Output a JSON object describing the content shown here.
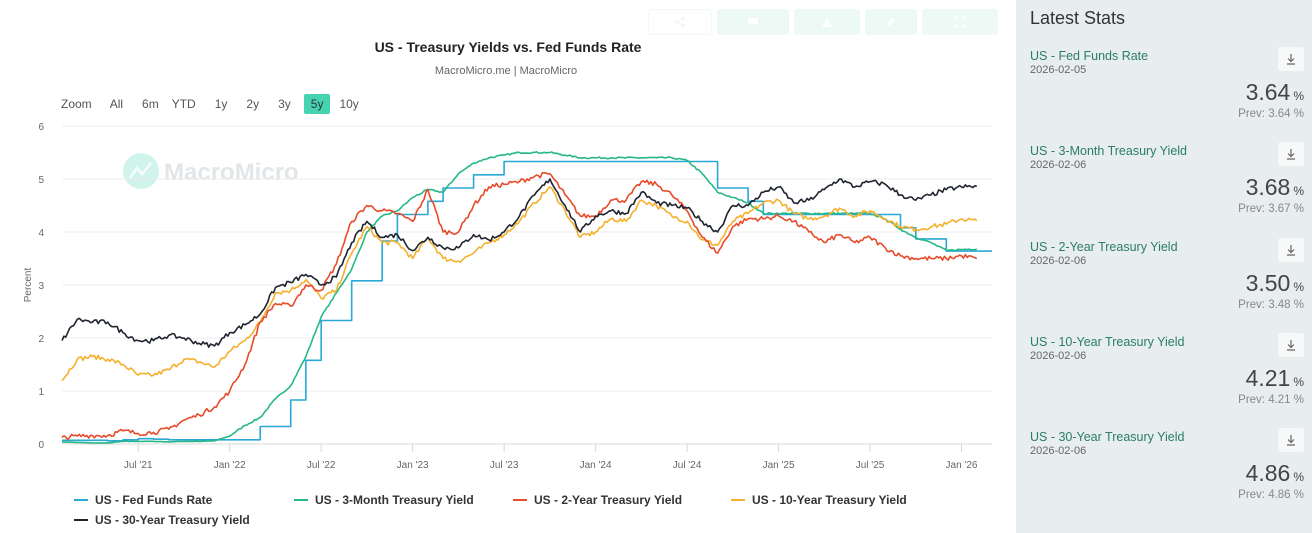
{
  "toolbar": {
    "buttons": [
      {
        "icon": "share-icon"
      },
      {
        "icon": "comment-icon"
      },
      {
        "icon": "image-icon"
      },
      {
        "icon": "edit-icon"
      },
      {
        "icon": "enlarge-icon"
      }
    ]
  },
  "zoom": {
    "label": "Zoom",
    "options": [
      "All",
      "6m",
      "YTD",
      "1y",
      "2y",
      "3y",
      "5y",
      "10y"
    ],
    "active": "5y"
  },
  "watermark": "MacroMicro",
  "colors": {
    "accent": "#45d3b1",
    "fed_funds": "#2aa8d6",
    "three_month": "#26b888",
    "two_year": "#e84b2b",
    "ten_year": "#f5b02e",
    "thirty_year": "#1f2430",
    "panel_bg": "#e8edef",
    "stat_name": "#2a7d66"
  },
  "chart_data": {
    "type": "line",
    "title": "US - Treasury Yields vs. Fed Funds Rate",
    "subtitle": "MacroMicro.me | MacroMicro",
    "xlabel": "",
    "ylabel": "Percent",
    "ylim": [
      0,
      6
    ],
    "yticks": [
      "0",
      "1",
      "2",
      "3",
      "4",
      "5",
      "6"
    ],
    "xticks": [
      "Jul '21",
      "Jan '22",
      "Jul '22",
      "Jan '23",
      "Jul '23",
      "Jan '24",
      "Jul '24",
      "Jan '25",
      "Jul '25",
      "Jan '26"
    ],
    "xtick_dates": [
      "2021-07",
      "2022-01",
      "2022-07",
      "2023-01",
      "2023-07",
      "2024-01",
      "2024-07",
      "2025-01",
      "2025-07",
      "2026-01"
    ],
    "xrange": [
      "2021-02",
      "2026-02"
    ],
    "grid": true,
    "legend_position": "bottom",
    "x": [
      "2021-02",
      "2021-03",
      "2021-04",
      "2021-05",
      "2021-06",
      "2021-07",
      "2021-08",
      "2021-09",
      "2021-10",
      "2021-11",
      "2021-12",
      "2022-01",
      "2022-02",
      "2022-03",
      "2022-04",
      "2022-05",
      "2022-06",
      "2022-07",
      "2022-08",
      "2022-09",
      "2022-10",
      "2022-11",
      "2022-12",
      "2023-01",
      "2023-02",
      "2023-03",
      "2023-04",
      "2023-05",
      "2023-06",
      "2023-07",
      "2023-08",
      "2023-09",
      "2023-10",
      "2023-11",
      "2023-12",
      "2024-01",
      "2024-02",
      "2024-03",
      "2024-04",
      "2024-05",
      "2024-06",
      "2024-07",
      "2024-08",
      "2024-09",
      "2024-10",
      "2024-11",
      "2024-12",
      "2025-01",
      "2025-02",
      "2025-03",
      "2025-04",
      "2025-05",
      "2025-06",
      "2025-07",
      "2025-08",
      "2025-09",
      "2025-10",
      "2025-11",
      "2025-12",
      "2026-01",
      "2026-02"
    ],
    "series": [
      {
        "name": "US - Fed Funds Rate",
        "key": "fed_funds",
        "step": true,
        "values": [
          0.07,
          0.07,
          0.07,
          0.06,
          0.08,
          0.1,
          0.09,
          0.08,
          0.08,
          0.08,
          0.08,
          0.08,
          0.08,
          0.33,
          0.33,
          0.83,
          1.58,
          2.33,
          2.33,
          3.08,
          3.08,
          3.83,
          4.33,
          4.33,
          4.58,
          4.83,
          4.83,
          5.08,
          5.08,
          5.33,
          5.33,
          5.33,
          5.33,
          5.33,
          5.33,
          5.33,
          5.33,
          5.33,
          5.33,
          5.33,
          5.33,
          5.33,
          5.33,
          4.83,
          4.83,
          4.58,
          4.33,
          4.33,
          4.33,
          4.33,
          4.33,
          4.33,
          4.33,
          4.33,
          4.33,
          4.08,
          3.87,
          3.87,
          3.64,
          3.64,
          3.64
        ]
      },
      {
        "name": "US - 3-Month Treasury Yield",
        "key": "three_month",
        "values": [
          0.04,
          0.03,
          0.02,
          0.02,
          0.05,
          0.05,
          0.05,
          0.04,
          0.05,
          0.05,
          0.06,
          0.15,
          0.35,
          0.5,
          0.85,
          1.1,
          1.65,
          2.4,
          2.85,
          3.3,
          4.0,
          4.3,
          4.4,
          4.65,
          4.8,
          4.75,
          5.1,
          5.3,
          5.4,
          5.45,
          5.5,
          5.5,
          5.5,
          5.45,
          5.4,
          5.4,
          5.4,
          5.4,
          5.4,
          5.4,
          5.4,
          5.35,
          5.1,
          4.75,
          4.65,
          4.55,
          4.35,
          4.35,
          4.35,
          4.35,
          4.35,
          4.35,
          4.35,
          4.35,
          4.25,
          4.05,
          3.9,
          3.8,
          3.65,
          3.67,
          3.68
        ]
      },
      {
        "name": "US - 2-Year Treasury Yield",
        "key": "two_year",
        "values": [
          0.12,
          0.15,
          0.16,
          0.16,
          0.25,
          0.2,
          0.22,
          0.28,
          0.45,
          0.55,
          0.7,
          1.0,
          1.5,
          2.3,
          2.65,
          2.6,
          3.0,
          2.9,
          3.4,
          4.2,
          4.5,
          4.4,
          4.35,
          4.2,
          4.8,
          4.0,
          4.0,
          4.5,
          4.85,
          4.9,
          4.95,
          5.05,
          5.1,
          4.7,
          4.3,
          4.3,
          4.6,
          4.6,
          4.95,
          4.9,
          4.7,
          4.4,
          3.9,
          3.6,
          4.1,
          4.25,
          4.25,
          4.3,
          4.2,
          4.0,
          3.8,
          3.95,
          3.8,
          3.9,
          3.7,
          3.55,
          3.5,
          3.5,
          3.5,
          3.55,
          3.5
        ]
      },
      {
        "name": "US - 10-Year Treasury Yield",
        "key": "ten_year",
        "values": [
          1.2,
          1.6,
          1.65,
          1.6,
          1.5,
          1.3,
          1.3,
          1.4,
          1.6,
          1.55,
          1.45,
          1.75,
          1.95,
          2.3,
          2.85,
          2.9,
          3.1,
          2.75,
          2.9,
          3.6,
          4.1,
          3.8,
          3.8,
          3.5,
          3.9,
          3.5,
          3.45,
          3.6,
          3.8,
          3.95,
          4.2,
          4.55,
          4.85,
          4.4,
          3.9,
          4.0,
          4.25,
          4.2,
          4.6,
          4.5,
          4.3,
          4.2,
          3.85,
          3.75,
          4.2,
          4.35,
          4.55,
          4.6,
          4.35,
          4.25,
          4.3,
          4.45,
          4.3,
          4.4,
          4.25,
          4.1,
          4.05,
          4.1,
          4.15,
          4.25,
          4.21
        ]
      },
      {
        "name": "US - 30-Year Treasury Yield",
        "key": "thirty_year",
        "values": [
          1.95,
          2.35,
          2.3,
          2.3,
          2.1,
          1.95,
          1.95,
          2.05,
          2.0,
          1.9,
          1.85,
          2.1,
          2.25,
          2.45,
          2.95,
          3.05,
          3.2,
          3.0,
          3.15,
          3.8,
          4.2,
          3.9,
          3.95,
          3.65,
          3.9,
          3.7,
          3.7,
          3.95,
          3.85,
          4.0,
          4.3,
          4.7,
          5.0,
          4.5,
          4.0,
          4.3,
          4.4,
          4.35,
          4.75,
          4.55,
          4.5,
          4.45,
          4.2,
          4.0,
          4.5,
          4.5,
          4.75,
          4.85,
          4.55,
          4.6,
          4.8,
          5.0,
          4.85,
          4.95,
          4.9,
          4.7,
          4.6,
          4.7,
          4.8,
          4.85,
          4.86
        ]
      }
    ]
  },
  "latest_stats": {
    "title": "Latest Stats",
    "items": [
      {
        "name": "US - Fed Funds Rate",
        "date": "2026-02-05",
        "value": "3.64",
        "unit": "%",
        "prev": "Prev: 3.64 %"
      },
      {
        "name": "US - 3-Month Treasury Yield",
        "date": "2026-02-06",
        "value": "3.68",
        "unit": "%",
        "prev": "Prev: 3.67 %"
      },
      {
        "name": "US - 2-Year Treasury Yield",
        "date": "2026-02-06",
        "value": "3.50",
        "unit": "%",
        "prev": "Prev: 3.48 %"
      },
      {
        "name": "US - 10-Year Treasury Yield",
        "date": "2026-02-06",
        "value": "4.21",
        "unit": "%",
        "prev": "Prev: 4.21 %"
      },
      {
        "name": "US - 30-Year Treasury Yield",
        "date": "2026-02-06",
        "value": "4.86",
        "unit": "%",
        "prev": "Prev: 4.86 %"
      }
    ]
  }
}
